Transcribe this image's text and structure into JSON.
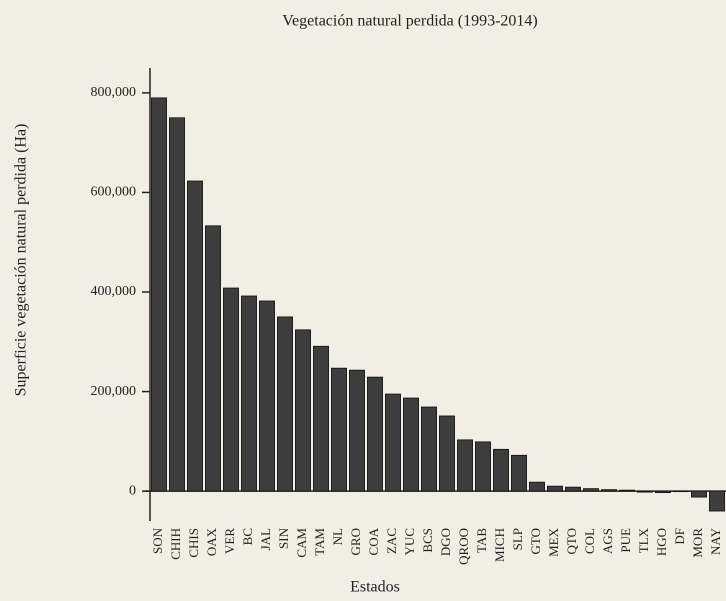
{
  "chart_data": {
    "type": "bar",
    "title": "Vegetación natural perdida (1993-2014)",
    "x_label": "Estados",
    "y_label": "Superficie vegetación natural perdida (Ha)",
    "categories": [
      "SON",
      "CHIH",
      "CHIS",
      "OAX",
      "VER",
      "BC",
      "JAL",
      "SIN",
      "CAM",
      "TAM",
      "NL",
      "GRO",
      "COA",
      "ZAC",
      "YUC",
      "BCS",
      "DGO",
      "QROO",
      "TAB",
      "MICH",
      "SLP",
      "GTO",
      "MEX",
      "QTO",
      "COL",
      "AGS",
      "PUE",
      "TLX",
      "HGO",
      "DF",
      "MOR",
      "NAY"
    ],
    "values": [
      790000,
      750000,
      623000,
      533000,
      408000,
      392000,
      382000,
      350000,
      324000,
      291000,
      247000,
      243000,
      229000,
      195000,
      187000,
      169000,
      151000,
      103000,
      99000,
      84000,
      72000,
      18000,
      10000,
      8000,
      5000,
      3000,
      2000,
      -2000,
      -3000,
      -1000,
      -12000,
      -40000
    ],
    "color": "#3d3d3d",
    "ylim": [
      -60000,
      850000
    ],
    "yticks": [
      0,
      {
        "value": 200000,
        "label": "200,000"
      },
      {
        "value": 400000,
        "label": "400,000"
      },
      {
        "value": 600000,
        "label": "600,000"
      },
      {
        "value": 800000,
        "label": "800,000"
      }
    ],
    "grid": false
  }
}
